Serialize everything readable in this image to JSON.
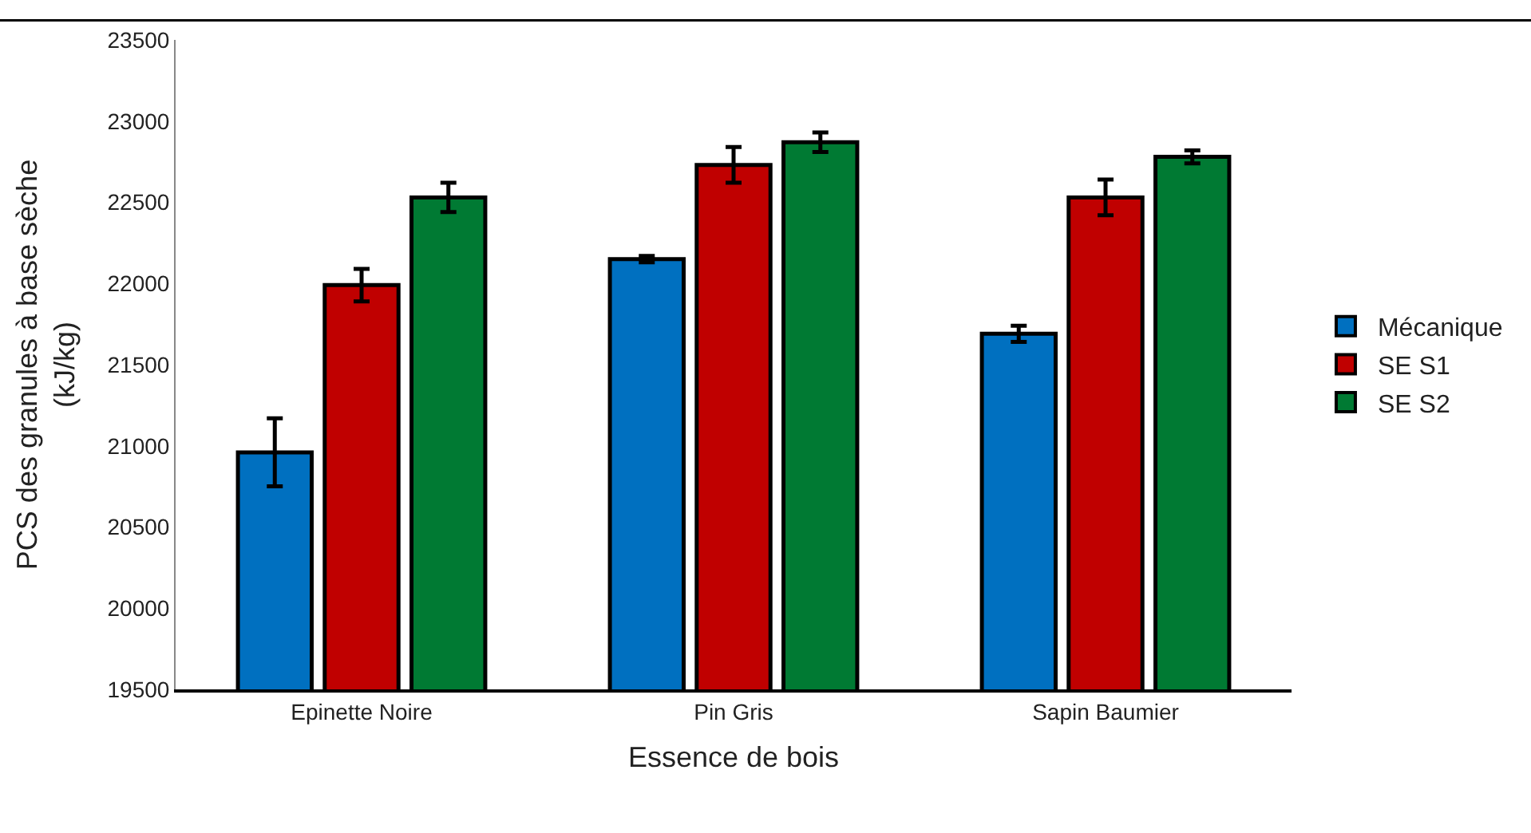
{
  "chart_data": {
    "type": "bar",
    "xlabel": "Essence de bois",
    "ylabel": "PCS des granules à base sèche\n(kJ/kg)",
    "categories": [
      "Epinette Noire",
      "Pin Gris",
      "Sapin Baumier"
    ],
    "series": [
      {
        "name": "Mécanique",
        "color": "#0070c0",
        "values": [
          20960,
          22150,
          21690
        ],
        "errors": [
          210,
          20,
          50
        ]
      },
      {
        "name": "SE S1",
        "color": "#c00000",
        "values": [
          21990,
          22730,
          22530
        ],
        "errors": [
          100,
          110,
          110
        ]
      },
      {
        "name": "SE S2",
        "color": "#007a33",
        "values": [
          22530,
          22870,
          22780
        ],
        "errors": [
          90,
          60,
          40
        ]
      }
    ],
    "ylim": [
      19500,
      23500
    ],
    "yticks": [
      19500,
      20000,
      20500,
      21000,
      21500,
      22000,
      22500,
      23000,
      23500
    ],
    "grid": false,
    "legend": "right"
  }
}
